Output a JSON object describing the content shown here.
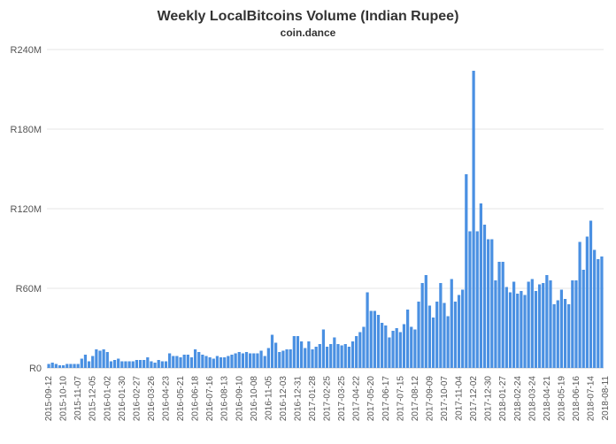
{
  "chart_data": {
    "type": "bar",
    "title": "Weekly LocalBitcoins Volume (Indian Rupee)",
    "subtitle": "coin.dance",
    "colors": {
      "bar": "#4a90e2",
      "grid": "#e6e6e6",
      "axis": "#cccccc"
    },
    "y_axis": {
      "min": 0,
      "max": 240,
      "ticks": [
        0,
        60,
        120,
        180,
        240
      ],
      "tick_labels": [
        "R0",
        "R60M",
        "R120M",
        "R180M",
        "R240M"
      ]
    },
    "x_tick_labels": [
      "2015-09-12",
      "2015-10-10",
      "2015-11-07",
      "2015-12-05",
      "2016-01-02",
      "2016-01-30",
      "2016-02-27",
      "2016-03-26",
      "2016-04-23",
      "2016-05-21",
      "2016-06-18",
      "2016-07-16",
      "2016-08-13",
      "2016-09-10",
      "2016-10-08",
      "2016-11-05",
      "2016-12-03",
      "2016-12-31",
      "2017-01-28",
      "2017-02-25",
      "2017-03-25",
      "2017-04-22",
      "2017-05-20",
      "2017-06-17",
      "2017-07-15",
      "2017-08-12",
      "2017-09-09",
      "2017-10-07",
      "2017-11-04",
      "2017-12-02",
      "2017-12-30",
      "2018-01-27",
      "2018-02-24",
      "2018-03-24",
      "2018-04-21",
      "2018-05-19",
      "2018-06-16",
      "2018-07-14",
      "2018-08-11"
    ],
    "values": [
      3,
      4,
      3,
      2,
      2,
      3,
      3,
      3,
      3,
      7,
      10,
      5,
      9,
      14,
      13,
      14,
      12,
      5,
      6,
      7,
      5,
      5,
      5,
      5,
      6,
      6,
      6,
      8,
      5,
      4,
      6,
      5,
      5,
      11,
      9,
      9,
      8,
      10,
      10,
      8,
      14,
      12,
      10,
      9,
      8,
      7,
      9,
      8,
      8,
      9,
      10,
      11,
      12,
      11,
      12,
      11,
      11,
      11,
      13,
      9,
      15,
      25,
      19,
      12,
      13,
      14,
      14,
      24,
      24,
      20,
      15,
      20,
      14,
      16,
      18,
      29,
      16,
      18,
      23,
      18,
      17,
      18,
      16,
      20,
      24,
      27,
      31,
      57,
      43,
      43,
      40,
      34,
      32,
      23,
      28,
      30,
      27,
      33,
      44,
      31,
      29,
      50,
      64,
      70,
      47,
      38,
      50,
      64,
      49,
      39,
      67,
      50,
      55,
      59,
      146,
      103,
      224,
      103,
      124,
      108,
      97,
      97,
      66,
      80,
      80,
      61,
      57,
      65,
      56,
      58,
      55,
      65,
      67,
      58,
      63,
      64,
      70,
      66,
      48,
      51,
      59,
      52,
      48,
      66,
      66,
      95,
      74,
      99,
      111,
      89,
      82,
      84
    ]
  }
}
